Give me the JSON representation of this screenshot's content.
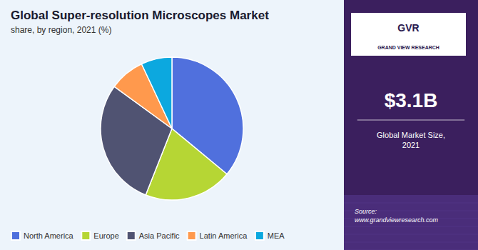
{
  "chart_data": {
    "type": "pie",
    "title": "Global Super-resolution Microscopes Market",
    "subtitle": "share, by region, 2021 (%)",
    "categories": [
      "North America",
      "Europe",
      "Asia Pacific",
      "Latin America",
      "MEA"
    ],
    "values": [
      36,
      20,
      29,
      8,
      7
    ],
    "legend": "bottom",
    "annotations": [
      "GVR",
      "GRAND VIEW RESEARCH",
      "$3.1B",
      "Global Market Size,\n2021",
      "Source:\nwww.grandviewresearch.com"
    ]
  }
}
